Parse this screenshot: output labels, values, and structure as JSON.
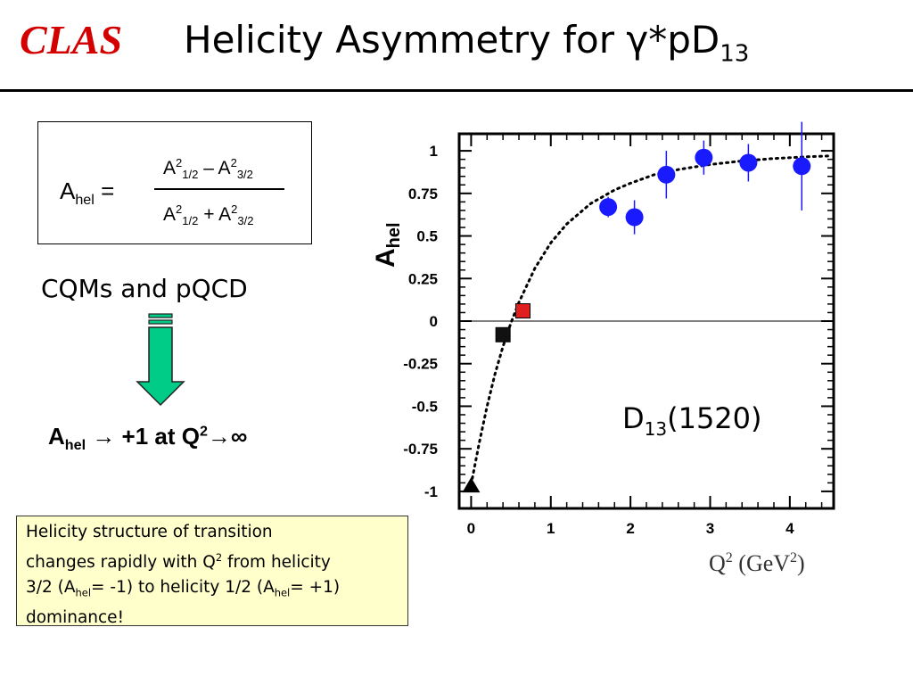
{
  "header": {
    "logo": "CLAS",
    "title_main": "Helicity Asymmetry for γ*pD",
    "title_sub": "13"
  },
  "formula": {
    "lhs_main": "A",
    "lhs_sub": "hel",
    "lhs_eq": " =",
    "num": {
      "a": "A",
      "sup1": "2",
      "sub1": "1/2",
      "op": " – A",
      "sup2": "2",
      "sub2": "3/2"
    },
    "den": {
      "a": "A",
      "sup1": "2",
      "sub1": "1/2",
      "op": " + A",
      "sup2": "2",
      "sub2": "3/2"
    }
  },
  "cqm_text": "CQMs and pQCD",
  "limit": {
    "a": "A",
    "sub": "hel",
    "rest": " → +1 at Q",
    "sup": "2",
    "tail": "→∞"
  },
  "note": {
    "line1": "Helicity structure of transition",
    "line2a": "changes rapidly with Q",
    "line2sup": "2",
    "line2b": " from helicity",
    "line3a": "3/2 (A",
    "line3sub": "hel",
    "line3b": "= -1) to helicity 1/2 (A",
    "line3sub2": "hel",
    "line3c": "= +1)",
    "line4": "dominance!"
  },
  "colors": {
    "accent": "#d40000",
    "points_blue": "#1a1aff",
    "arrow_fill": "#00cc88",
    "note_bg": "#ffffcc"
  },
  "chart_data": {
    "type": "scatter",
    "ylabel_main": "A",
    "ylabel_sub": "hel",
    "xlabel_main": "Q",
    "xlabel_sup": "2",
    "xlabel_unit": " (GeV",
    "xlabel_unit_sup": "2",
    "xlabel_close": ")",
    "xlim": [
      -0.15,
      4.55
    ],
    "ylim": [
      -1.1,
      1.1
    ],
    "xticks": [
      0,
      1,
      2,
      3,
      4
    ],
    "xtick_labels": [
      "0",
      "1",
      "2",
      "3",
      "4"
    ],
    "yticks": [
      1,
      0.75,
      0.5,
      0.25,
      0,
      -0.25,
      -0.5,
      -0.75,
      -1
    ],
    "ytick_labels": [
      "1",
      "0.75",
      "0.5",
      "0.25",
      "0",
      "-0.25",
      "-0.5",
      "-0.75",
      "-1"
    ],
    "annotation": {
      "main": "D",
      "sub": "13",
      "rest": "(1520)"
    },
    "series": [
      {
        "marker": "circle",
        "color": "#1a1aff",
        "points": [
          {
            "x": 1.72,
            "y": 0.67,
            "err": 0.06
          },
          {
            "x": 2.05,
            "y": 0.61,
            "err": 0.1
          },
          {
            "x": 2.45,
            "y": 0.86,
            "err": 0.14
          },
          {
            "x": 2.92,
            "y": 0.96,
            "err": 0.1
          },
          {
            "x": 3.48,
            "y": 0.93,
            "err": 0.11
          },
          {
            "x": 4.15,
            "y": 0.91,
            "err": 0.26
          }
        ]
      },
      {
        "marker": "square",
        "color": "#111111",
        "points": [
          {
            "x": 0.4,
            "y": -0.08,
            "err": 0
          }
        ]
      },
      {
        "marker": "square",
        "color": "#e02020",
        "points": [
          {
            "x": 0.65,
            "y": 0.06,
            "err": 0
          }
        ]
      },
      {
        "marker": "triangle",
        "color": "#000000",
        "points": [
          {
            "x": 0.0,
            "y": -0.97,
            "err": 0
          }
        ]
      }
    ],
    "fit_curve": {
      "style": "dotted",
      "x": [
        0,
        0.1,
        0.2,
        0.3,
        0.4,
        0.5,
        0.6,
        0.8,
        1.0,
        1.2,
        1.5,
        1.8,
        2.0,
        2.3,
        2.6,
        3.0,
        3.4,
        3.8,
        4.2,
        4.5
      ],
      "y": [
        -0.96,
        -0.72,
        -0.5,
        -0.31,
        -0.15,
        -0.01,
        0.11,
        0.31,
        0.46,
        0.57,
        0.69,
        0.77,
        0.81,
        0.86,
        0.89,
        0.92,
        0.94,
        0.955,
        0.965,
        0.97
      ]
    }
  }
}
